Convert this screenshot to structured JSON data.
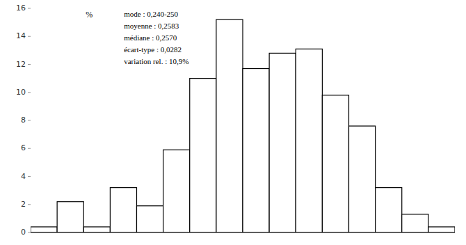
{
  "chart_data": {
    "type": "bar",
    "categories": [
      null,
      null,
      null,
      null,
      null,
      null,
      null,
      null,
      null,
      null,
      null,
      null,
      null,
      null,
      null,
      null
    ],
    "values": [
      0.4,
      2.2,
      0.4,
      3.2,
      1.9,
      5.9,
      11.0,
      15.2,
      11.7,
      12.8,
      13.1,
      9.8,
      7.6,
      3.2,
      1.3,
      0.4
    ],
    "color": "#ffffff",
    "y_label": "%",
    "ylim": [
      0,
      16
    ],
    "yticks": [
      0,
      2,
      4,
      6,
      8,
      10,
      12,
      14,
      16
    ],
    "annotations": [
      "mode : 0,240-250",
      "moyenne :  0,2583",
      "médiane : 0,2570",
      "écart-type : 0,0282",
      "variation rel. : 10,9%"
    ],
    "grid": false,
    "tick_labels": "y"
  }
}
